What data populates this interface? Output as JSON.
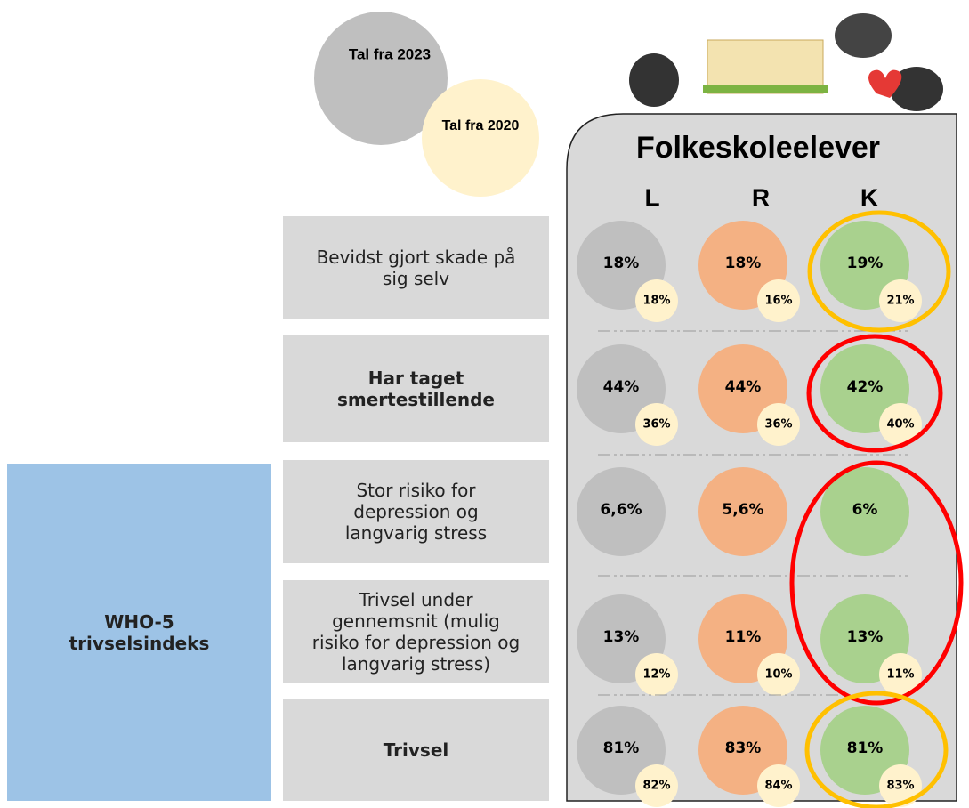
{
  "legend": {
    "current": "Tal fra 2023",
    "previous": "Tal fra 2020"
  },
  "panel": {
    "title": "Folkeskoleelever",
    "columns": [
      "L",
      "R",
      "K"
    ]
  },
  "group": {
    "label": "WHO-5 trivselsindeks"
  },
  "rows": [
    {
      "label": "Bevidst gjort skade på sig selv",
      "current": [
        "18%",
        "18%",
        "19%"
      ],
      "previous": [
        "18%",
        "16%",
        "21%"
      ]
    },
    {
      "label": "Har taget smertestillende",
      "current": [
        "44%",
        "44%",
        "42%"
      ],
      "previous": [
        "36%",
        "36%",
        "40%"
      ]
    },
    {
      "label": "Stor risiko for depression og langvarig stress",
      "current": [
        "6,6%",
        "5,6%",
        "6%"
      ],
      "previous": [
        null,
        null,
        null
      ]
    },
    {
      "label": "Trivsel under gennemsnit (mulig risiko for depression og langvarig stress)",
      "current": [
        "13%",
        "11%",
        "13%"
      ],
      "previous": [
        "12%",
        "10%",
        "11%"
      ]
    },
    {
      "label": "Trivsel",
      "current": [
        "81%",
        "83%",
        "81%"
      ],
      "previous": [
        "82%",
        "84%",
        "83%"
      ]
    }
  ]
}
